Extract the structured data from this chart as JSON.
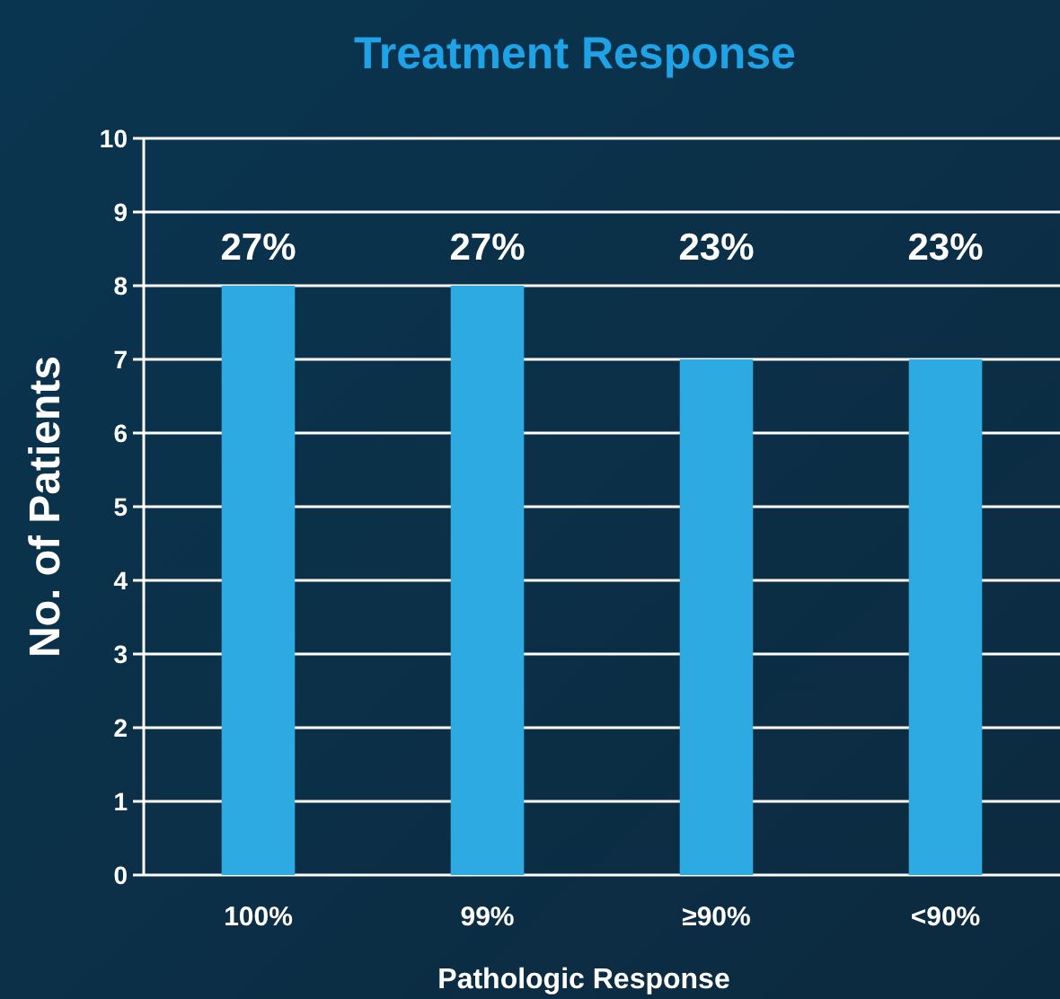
{
  "chart_data": {
    "type": "bar",
    "title": "Treatment Response",
    "xlabel": "Pathologic Response",
    "ylabel": "No. of Patients",
    "categories": [
      "100%",
      "99%",
      "≥90%",
      "<90%"
    ],
    "values": [
      8,
      8,
      7,
      7
    ],
    "color": "#2eaae2",
    "annotations": [
      "27%",
      "27%",
      "23%",
      "23%"
    ],
    "ylim": [
      0,
      10
    ],
    "yticks": [
      0,
      1,
      2,
      3,
      4,
      5,
      6,
      7,
      8,
      9,
      10
    ],
    "grid": "y"
  }
}
